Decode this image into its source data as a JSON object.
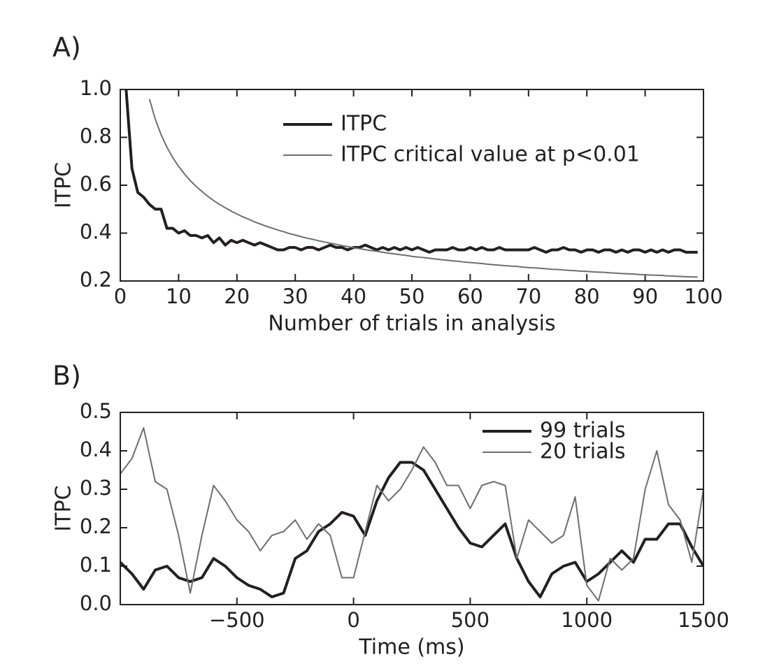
{
  "chart_data": [
    {
      "type": "line",
      "title": "A)",
      "xlabel": "Number of trials in analysis",
      "ylabel": "ITPC",
      "x": [
        1,
        2,
        3,
        4,
        5,
        6,
        7,
        8,
        9,
        10,
        11,
        12,
        13,
        14,
        15,
        16,
        17,
        18,
        19,
        20,
        21,
        22,
        23,
        24,
        25,
        26,
        27,
        28,
        29,
        30,
        31,
        32,
        33,
        34,
        35,
        36,
        37,
        38,
        39,
        40,
        41,
        42,
        43,
        44,
        45,
        46,
        47,
        48,
        49,
        50,
        51,
        52,
        53,
        54,
        55,
        56,
        57,
        58,
        59,
        60,
        61,
        62,
        63,
        64,
        65,
        66,
        67,
        68,
        69,
        70,
        71,
        72,
        73,
        74,
        75,
        76,
        77,
        78,
        79,
        80,
        81,
        82,
        83,
        84,
        85,
        86,
        87,
        88,
        89,
        90,
        91,
        92,
        93,
        94,
        95,
        96,
        97,
        98,
        99
      ],
      "series": [
        {
          "name": "ITPC",
          "color": "#231f20",
          "width": 4,
          "values": [
            1.0,
            0.67,
            0.57,
            0.55,
            0.52,
            0.5,
            0.5,
            0.42,
            0.42,
            0.4,
            0.41,
            0.39,
            0.39,
            0.38,
            0.39,
            0.36,
            0.38,
            0.35,
            0.37,
            0.36,
            0.37,
            0.36,
            0.35,
            0.36,
            0.35,
            0.34,
            0.33,
            0.33,
            0.34,
            0.34,
            0.33,
            0.34,
            0.34,
            0.33,
            0.34,
            0.35,
            0.34,
            0.34,
            0.33,
            0.34,
            0.34,
            0.35,
            0.34,
            0.33,
            0.34,
            0.33,
            0.34,
            0.33,
            0.34,
            0.33,
            0.34,
            0.33,
            0.32,
            0.33,
            0.33,
            0.33,
            0.34,
            0.33,
            0.33,
            0.34,
            0.33,
            0.34,
            0.33,
            0.33,
            0.34,
            0.33,
            0.33,
            0.33,
            0.33,
            0.33,
            0.34,
            0.33,
            0.32,
            0.33,
            0.33,
            0.34,
            0.33,
            0.33,
            0.32,
            0.33,
            0.33,
            0.32,
            0.33,
            0.33,
            0.32,
            0.33,
            0.32,
            0.33,
            0.33,
            0.32,
            0.33,
            0.32,
            0.33,
            0.32,
            0.33,
            0.33,
            0.32,
            0.32,
            0.32
          ]
        },
        {
          "name": "ITPC critical value at p<0.01",
          "color": "#6d6e71",
          "width": 2,
          "values": [
            null,
            null,
            null,
            null,
            0.96,
            0.876,
            0.811,
            0.759,
            0.715,
            0.679,
            0.647,
            0.619,
            0.595,
            0.574,
            0.554,
            0.536,
            0.52,
            0.506,
            0.492,
            0.48,
            0.468,
            0.458,
            0.447,
            0.438,
            0.429,
            0.421,
            0.413,
            0.406,
            0.398,
            0.392,
            0.385,
            0.379,
            0.374,
            0.368,
            0.363,
            0.358,
            0.353,
            0.348,
            0.344,
            0.339,
            0.335,
            0.331,
            0.327,
            0.324,
            0.32,
            0.316,
            0.313,
            0.31,
            0.307,
            0.303,
            0.3,
            0.298,
            0.295,
            0.292,
            0.289,
            0.287,
            0.284,
            0.282,
            0.279,
            0.277,
            0.275,
            0.273,
            0.27,
            0.268,
            0.266,
            0.264,
            0.262,
            0.261,
            0.258,
            0.256,
            0.255,
            0.253,
            0.251,
            0.249,
            0.248,
            0.246,
            0.244,
            0.243,
            0.241,
            0.24,
            0.238,
            0.237,
            0.236,
            0.234,
            0.233,
            0.231,
            0.23,
            0.229,
            0.227,
            0.226,
            0.225,
            0.224,
            0.223,
            0.221,
            0.22,
            0.219,
            0.218,
            0.217,
            0.216
          ]
        }
      ],
      "xlim": [
        0,
        100
      ],
      "ylim": [
        0.2,
        1.0
      ],
      "xticks": [
        0,
        10,
        20,
        30,
        40,
        50,
        60,
        70,
        80,
        90,
        100
      ],
      "yticks": [
        0.2,
        0.4,
        0.6,
        0.8,
        {
          "value": 1.0,
          "label": "1.0"
        }
      ],
      "legend": "upper center"
    },
    {
      "type": "line",
      "title": "B)",
      "xlabel": "Time (ms)",
      "ylabel": "ITPC",
      "x": [
        -1000,
        -950,
        -900,
        -850,
        -800,
        -750,
        -700,
        -650,
        -600,
        -550,
        -500,
        -450,
        -400,
        -350,
        -300,
        -250,
        -200,
        -150,
        -100,
        -50,
        0,
        50,
        100,
        150,
        200,
        250,
        300,
        350,
        400,
        450,
        500,
        550,
        600,
        650,
        700,
        750,
        800,
        850,
        900,
        950,
        1000,
        1050,
        1100,
        1150,
        1200,
        1250,
        1300,
        1350,
        1400,
        1450,
        1500
      ],
      "series": [
        {
          "name": "99 trials",
          "color": "#231f20",
          "width": 4,
          "values": [
            0.11,
            0.08,
            0.04,
            0.09,
            0.1,
            0.07,
            0.06,
            0.07,
            0.12,
            0.1,
            0.07,
            0.05,
            0.04,
            0.02,
            0.03,
            0.12,
            0.14,
            0.19,
            0.21,
            0.24,
            0.23,
            0.18,
            0.27,
            0.33,
            0.37,
            0.37,
            0.35,
            0.3,
            0.25,
            0.2,
            0.16,
            0.15,
            0.18,
            0.21,
            0.12,
            0.06,
            0.02,
            0.08,
            0.1,
            0.11,
            0.06,
            0.08,
            0.11,
            0.14,
            0.11,
            0.17,
            0.17,
            0.21,
            0.21,
            0.15,
            0.1
          ]
        },
        {
          "name": "20 trials",
          "color": "#6d6e71",
          "width": 2,
          "values": [
            0.34,
            0.38,
            0.46,
            0.32,
            0.3,
            0.18,
            0.03,
            0.18,
            0.31,
            0.27,
            0.22,
            0.19,
            0.14,
            0.18,
            0.19,
            0.22,
            0.17,
            0.21,
            0.18,
            0.07,
            0.07,
            0.19,
            0.31,
            0.27,
            0.3,
            0.35,
            0.41,
            0.37,
            0.31,
            0.31,
            0.25,
            0.31,
            0.32,
            0.31,
            0.12,
            0.22,
            0.19,
            0.16,
            0.18,
            0.28,
            0.05,
            0.01,
            0.12,
            0.09,
            0.12,
            0.3,
            0.4,
            0.26,
            0.22,
            0.11,
            0.3
          ]
        }
      ],
      "xlim": [
        -1000,
        1500
      ],
      "ylim": [
        0,
        0.5
      ],
      "xticks": [
        {
          "value": -500,
          "label": "−500"
        },
        0,
        500,
        1000,
        1500
      ],
      "yticks": [
        {
          "value": 0,
          "label": "0.0"
        },
        0.1,
        0.2,
        0.3,
        0.4,
        0.5
      ],
      "legend": "upper right"
    }
  ]
}
